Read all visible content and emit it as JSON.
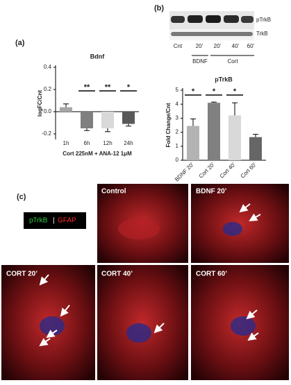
{
  "panel_labels": [
    "(a)",
    "(b)",
    "(c)"
  ],
  "blot": {
    "bands": [
      "pTrkB",
      "TrkB"
    ],
    "lanes": [
      "Cnt",
      "20’",
      "20’",
      "40’",
      "60’"
    ],
    "groups": [
      "BDNF",
      "Cort"
    ]
  },
  "legend": {
    "green": "pTrkB",
    "separator": "|",
    "red": "GFAP"
  },
  "images": [
    "Control",
    "BDNF 20’",
    "CORT 20’",
    "CORT 40’",
    "CORT 60’"
  ],
  "chart_data": [
    {
      "type": "bar",
      "title": "Bdnf",
      "y_label": "logFC/Cnt",
      "x_label": "Cort 225nM + ANA-12 1μM",
      "categories": [
        "1h",
        "6h",
        "12h",
        "24h"
      ],
      "values": [
        0.04,
        -0.15,
        -0.15,
        -0.11
      ],
      "errors": [
        0.03,
        0.02,
        0.03,
        0.02
      ],
      "colors": [
        "#a6a6a6",
        "#7f7f7f",
        "#d9d9d9",
        "#595959"
      ],
      "significance": [
        null,
        "**",
        "**",
        "*"
      ],
      "ylim": [
        -0.25,
        0.4
      ],
      "yticks": [
        -0.2,
        {
          "value": 0,
          "label": "0.0"
        },
        0.2,
        0.4
      ]
    },
    {
      "type": "bar",
      "title": "pTrkB",
      "y_label": "Fold Change/Cnt",
      "categories": [
        "BDNF 20’",
        "Cort 20’",
        "Cort 40’",
        "Cort 60’"
      ],
      "values": [
        2.45,
        4.1,
        3.2,
        1.65
      ],
      "errors": [
        0.5,
        0.05,
        0.9,
        0.2
      ],
      "colors": [
        "#b3b3b3",
        "#808080",
        "#d9d9d9",
        "#666666"
      ],
      "significance": [
        "*",
        "*",
        "*",
        null
      ],
      "ylim": [
        0,
        5
      ],
      "yticks": [
        0,
        1,
        2,
        3,
        4,
        5
      ]
    }
  ]
}
